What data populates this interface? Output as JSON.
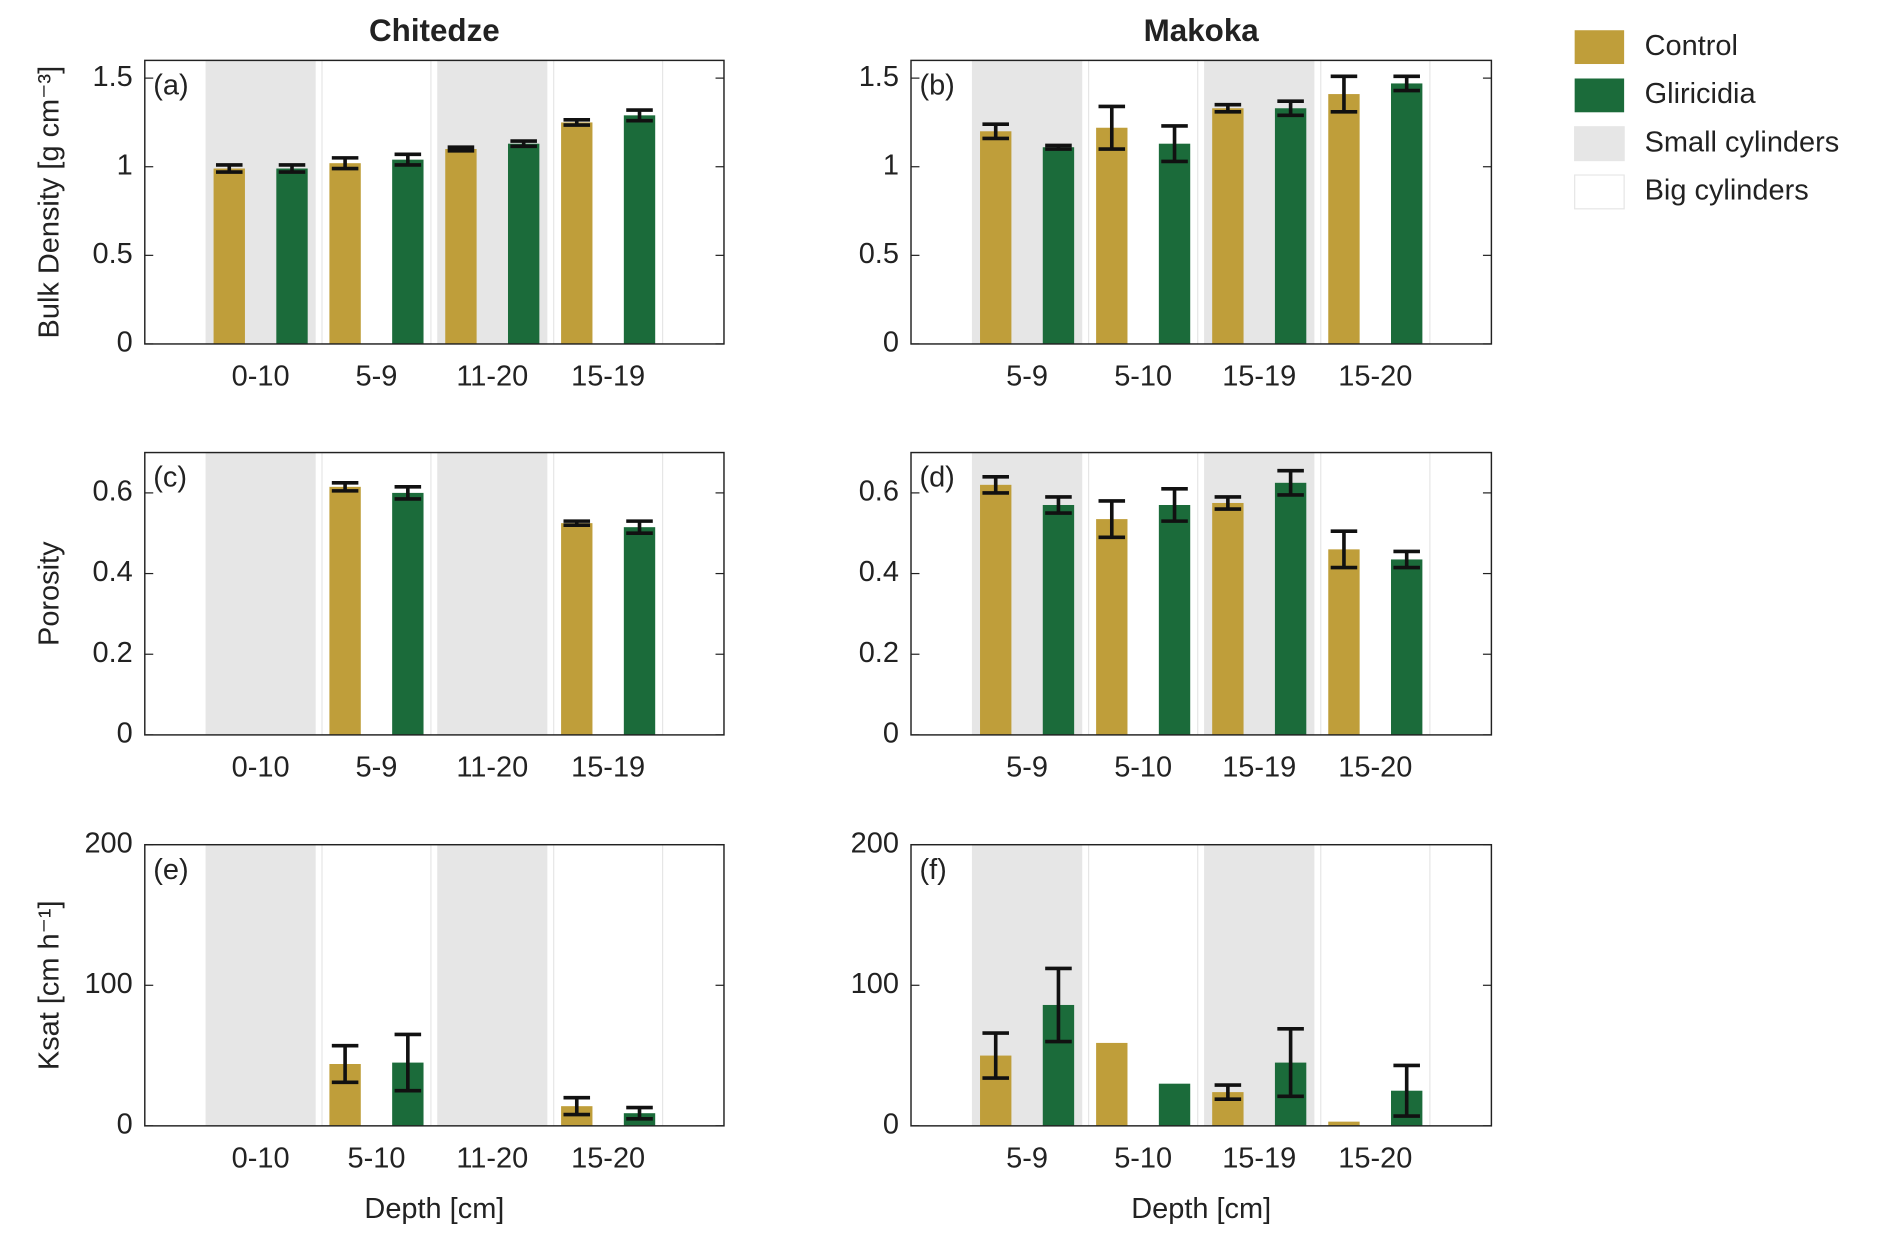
{
  "chart_data": [
    {
      "type": "bar",
      "title": "Chitedze",
      "panel_label": "(a)",
      "ylabel": "Bulk Density [g cm⁻³]",
      "categories": [
        "0-10",
        "5-9",
        "11-20",
        "15-19"
      ],
      "series": [
        {
          "name": "Control",
          "color": "#bf9e3a",
          "values": [
            0.99,
            1.02,
            1.1,
            1.25
          ],
          "errors": [
            0.02,
            0.03,
            0.01,
            0.015
          ]
        },
        {
          "name": "Gliricidia",
          "color": "#1b6b3a",
          "values": [
            0.99,
            1.04,
            1.13,
            1.29
          ],
          "errors": [
            0.02,
            0.03,
            0.015,
            0.03
          ]
        }
      ],
      "ylim": [
        0,
        1.6
      ],
      "yticks": [
        0,
        0.5,
        1,
        1.5
      ]
    },
    {
      "type": "bar",
      "title": "Makoka",
      "panel_label": "(b)",
      "categories": [
        "5-9",
        "5-10",
        "15-19",
        "15-20"
      ],
      "series": [
        {
          "name": "Control",
          "color": "#bf9e3a",
          "values": [
            1.2,
            1.22,
            1.33,
            1.41
          ],
          "errors": [
            0.04,
            0.12,
            0.02,
            0.1
          ]
        },
        {
          "name": "Gliricidia",
          "color": "#1b6b3a",
          "values": [
            1.11,
            1.13,
            1.33,
            1.47
          ],
          "errors": [
            0.01,
            0.1,
            0.04,
            0.04
          ]
        }
      ],
      "ylim": [
        0,
        1.6
      ],
      "yticks": [
        0,
        0.5,
        1,
        1.5
      ]
    },
    {
      "type": "bar",
      "panel_label": "(c)",
      "ylabel": "Porosity",
      "categories": [
        "0-10",
        "5-9",
        "11-20",
        "15-19"
      ],
      "series": [
        {
          "name": "Control",
          "color": "#bf9e3a",
          "values": [
            null,
            0.615,
            null,
            0.525
          ],
          "errors": [
            null,
            0.01,
            null,
            0.005
          ]
        },
        {
          "name": "Gliricidia",
          "color": "#1b6b3a",
          "values": [
            null,
            0.6,
            null,
            0.515
          ],
          "errors": [
            null,
            0.015,
            null,
            0.015
          ]
        }
      ],
      "ylim": [
        0,
        0.7
      ],
      "yticks": [
        0,
        0.2,
        0.4,
        0.6
      ]
    },
    {
      "type": "bar",
      "panel_label": "(d)",
      "categories": [
        "5-9",
        "5-10",
        "15-19",
        "15-20"
      ],
      "series": [
        {
          "name": "Control",
          "color": "#bf9e3a",
          "values": [
            0.62,
            0.535,
            0.575,
            0.46
          ],
          "errors": [
            0.02,
            0.045,
            0.015,
            0.045
          ]
        },
        {
          "name": "Gliricidia",
          "color": "#1b6b3a",
          "values": [
            0.57,
            0.57,
            0.625,
            0.435
          ],
          "errors": [
            0.02,
            0.04,
            0.03,
            0.02
          ]
        }
      ],
      "ylim": [
        0,
        0.7
      ],
      "yticks": [
        0,
        0.2,
        0.4,
        0.6
      ]
    },
    {
      "type": "bar",
      "panel_label": "(e)",
      "ylabel": "Ksat [cm h⁻¹]",
      "xlabel": "Depth [cm]",
      "categories": [
        "0-10",
        "5-10",
        "11-20",
        "15-20"
      ],
      "series": [
        {
          "name": "Control",
          "color": "#bf9e3a",
          "values": [
            null,
            44,
            null,
            14
          ],
          "errors": [
            null,
            13,
            null,
            6
          ]
        },
        {
          "name": "Gliricidia",
          "color": "#1b6b3a",
          "values": [
            null,
            45,
            null,
            9
          ],
          "errors": [
            null,
            20,
            null,
            4
          ]
        }
      ],
      "ylim": [
        0,
        200
      ],
      "yticks": [
        0,
        100,
        200
      ]
    },
    {
      "type": "bar",
      "panel_label": "(f)",
      "xlabel": "Depth [cm]",
      "categories": [
        "5-9",
        "5-10",
        "15-19",
        "15-20"
      ],
      "series": [
        {
          "name": "Control",
          "color": "#bf9e3a",
          "values": [
            50,
            59,
            24,
            3
          ],
          "errors": [
            16,
            null,
            5,
            null
          ]
        },
        {
          "name": "Gliricidia",
          "color": "#1b6b3a",
          "values": [
            86,
            30,
            45,
            25
          ],
          "errors": [
            26,
            null,
            24,
            18
          ]
        }
      ],
      "ylim": [
        0,
        200
      ],
      "yticks": [
        0,
        100,
        200
      ]
    }
  ],
  "shading": [
    {
      "name": "Small cylinders",
      "color": "#e6e6e6"
    },
    {
      "name": "Big cylinders",
      "color": "#ffffff"
    }
  ]
}
